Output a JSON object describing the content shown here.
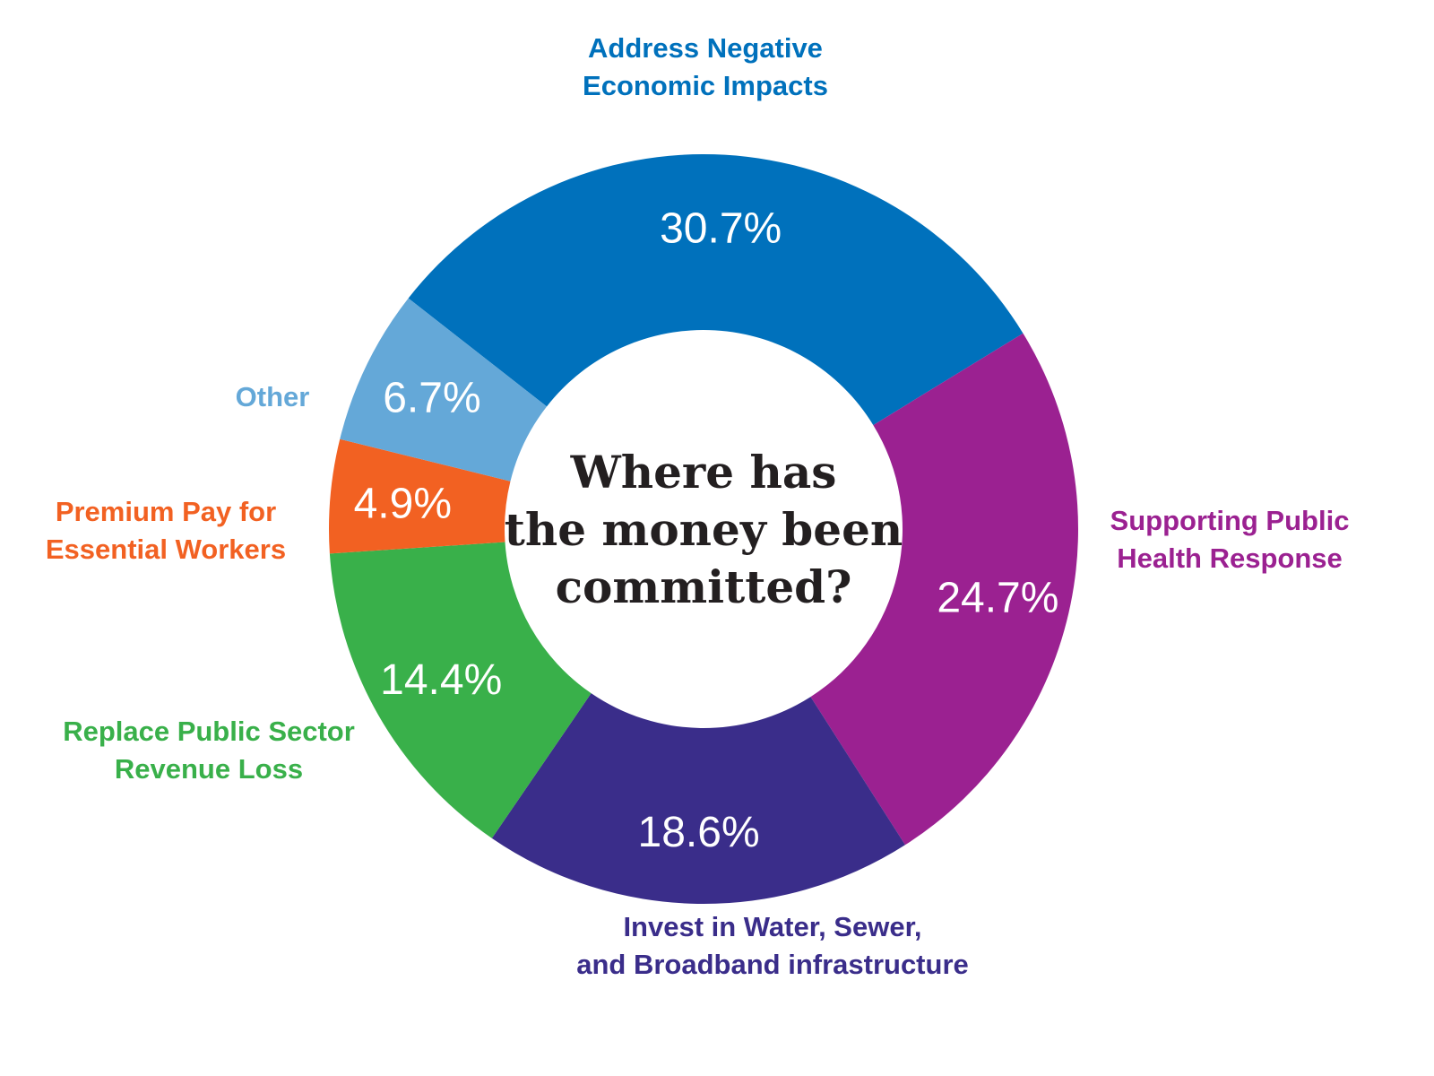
{
  "chart_data": {
    "type": "pie",
    "title": "Where has the money been committed?",
    "title_lines": [
      "Where has",
      "the money been",
      "committed?"
    ],
    "unit": "%",
    "categories": [
      "Address Negative Economic Impacts",
      "Supporting Public Health Response",
      "Invest in Water, Sewer, and Broadband infrastructure",
      "Replace Public Sector Revenue Loss",
      "Premium Pay for Essential Workers",
      "Other"
    ],
    "values": [
      30.7,
      24.7,
      18.6,
      14.4,
      4.9,
      6.7
    ],
    "value_labels": [
      "30.7%",
      "24.7%",
      "18.6%",
      "14.4%",
      "4.9%",
      "6.7%"
    ],
    "label_lines": [
      [
        "Address Negative",
        "Economic Impacts"
      ],
      [
        "Supporting Public",
        "Health Response"
      ],
      [
        "Invest in Water, Sewer,",
        "and Broadband infrastructure"
      ],
      [
        "Replace Public Sector",
        "Revenue Loss"
      ],
      [
        "Premium Pay for",
        "Essential Workers"
      ],
      [
        "Other"
      ]
    ],
    "colors": [
      "#0071bc",
      "#9b2191",
      "#3a2d8a",
      "#39b04a",
      "#f26122",
      "#64a8d8"
    ],
    "donut": true,
    "start_direction": "upper-left, clockwise",
    "legend": "none"
  }
}
